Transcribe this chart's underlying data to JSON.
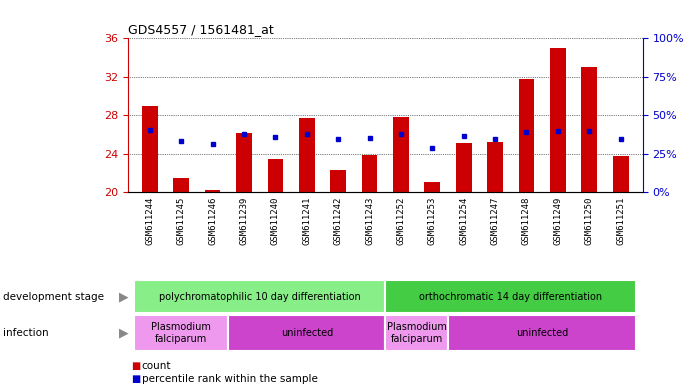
{
  "title": "GDS4557 / 1561481_at",
  "samples": [
    "GSM611244",
    "GSM611245",
    "GSM611246",
    "GSM611239",
    "GSM611240",
    "GSM611241",
    "GSM611242",
    "GSM611243",
    "GSM611252",
    "GSM611253",
    "GSM611254",
    "GSM611247",
    "GSM611248",
    "GSM611249",
    "GSM611250",
    "GSM611251"
  ],
  "bar_values": [
    29.0,
    21.5,
    20.2,
    26.1,
    23.4,
    27.7,
    22.3,
    23.9,
    27.8,
    21.0,
    25.1,
    25.2,
    31.8,
    35.0,
    33.0,
    23.8
  ],
  "percentile_values": [
    26.5,
    25.3,
    25.0,
    26.0,
    25.7,
    26.0,
    25.5,
    25.6,
    26.0,
    24.6,
    25.8,
    25.5,
    26.3,
    26.4,
    26.4,
    25.5
  ],
  "bar_base": 20,
  "ylim_left": [
    20,
    36
  ],
  "ylim_right": [
    0,
    100
  ],
  "yticks_left": [
    20,
    24,
    28,
    32,
    36
  ],
  "yticks_right": [
    0,
    25,
    50,
    75,
    100
  ],
  "bar_color": "#cc0000",
  "percentile_color": "#0000cc",
  "bar_width": 0.5,
  "development_groups": [
    {
      "label": "polychromatophilic 10 day differentiation",
      "start": 0,
      "end": 7,
      "color": "#88ee88"
    },
    {
      "label": "orthochromatic 14 day differentiation",
      "start": 8,
      "end": 15,
      "color": "#44cc44"
    }
  ],
  "infection_groups": [
    {
      "label": "Plasmodium\nfalciparum",
      "start": 0,
      "end": 2,
      "color": "#ee99ee"
    },
    {
      "label": "uninfected",
      "start": 3,
      "end": 7,
      "color": "#cc44cc"
    },
    {
      "label": "Plasmodium\nfalciparum",
      "start": 8,
      "end": 9,
      "color": "#ee99ee"
    },
    {
      "label": "uninfected",
      "start": 10,
      "end": 15,
      "color": "#cc44cc"
    }
  ],
  "legend_count_color": "#cc0000",
  "legend_percentile_color": "#0000cc",
  "background_color": "#ffffff",
  "plot_bg_color": "#ffffff",
  "axis_label_color_left": "#cc0000",
  "axis_label_color_right": "#0000cc",
  "xtick_bg_color": "#cccccc"
}
